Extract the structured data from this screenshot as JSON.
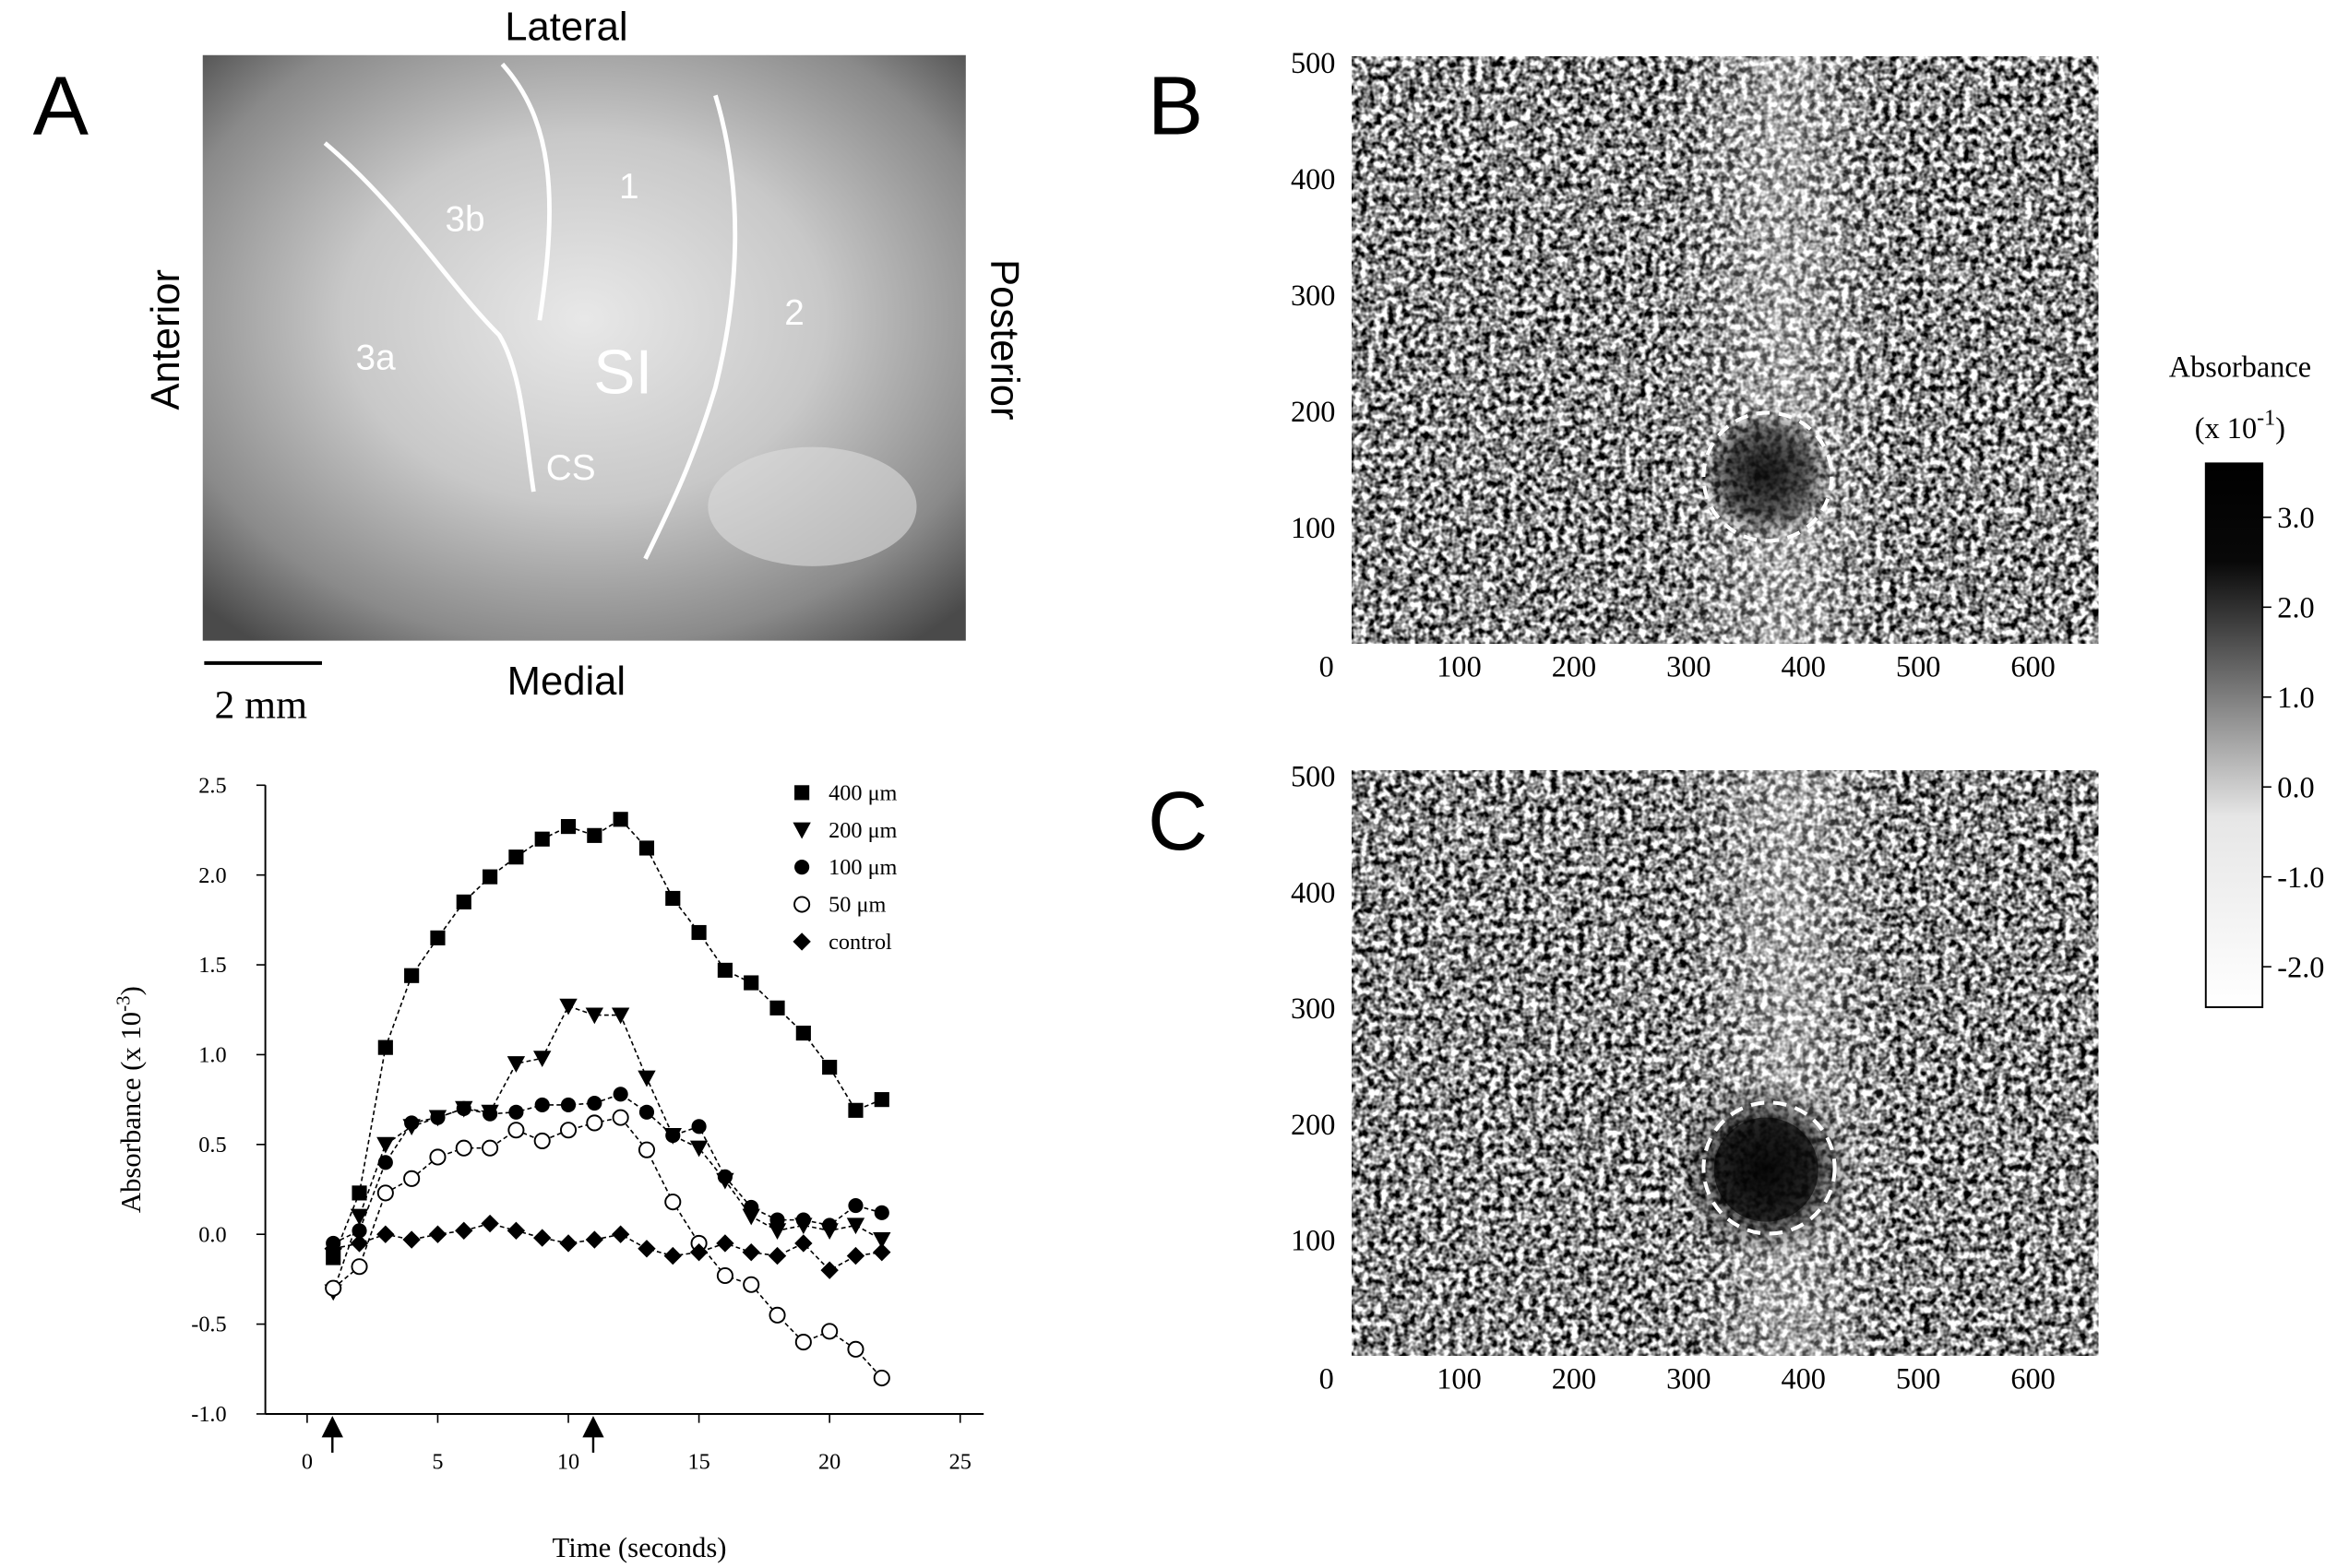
{
  "panel_labels": [
    "A",
    "B",
    "C"
  ],
  "photo": {
    "orientation": {
      "top": "Lateral",
      "bottom": "Medial",
      "left": "Anterior",
      "right": "Posterior"
    },
    "regions": [
      "3b",
      "1",
      "2",
      "3a",
      "SI",
      "CS"
    ],
    "scale_bar": "2 mm"
  },
  "chart_data": [
    {
      "type": "line",
      "x_label": "Time (seconds)",
      "y_label": [
        "Absorbance (x 10",
        "-3",
        ")"
      ],
      "x": [
        1,
        2,
        3,
        4,
        5,
        6,
        7,
        8,
        9,
        10,
        11,
        12,
        13,
        14,
        15,
        16,
        17,
        18,
        19,
        20,
        21,
        22
      ],
      "series": [
        {
          "name": "400 μm",
          "marker": "square",
          "color": "#000000",
          "values": [
            -0.13,
            0.23,
            1.04,
            1.44,
            1.65,
            1.85,
            1.99,
            2.1,
            2.2,
            2.27,
            2.22,
            2.31,
            2.15,
            1.87,
            1.68,
            1.47,
            1.4,
            1.26,
            1.12,
            0.93,
            0.69,
            0.75
          ]
        },
        {
          "name": "200 μm",
          "marker": "triangle-down",
          "color": "#000000",
          "values": [
            -0.32,
            0.1,
            0.5,
            0.6,
            0.65,
            0.7,
            0.68,
            0.95,
            0.98,
            1.27,
            1.22,
            1.22,
            0.87,
            0.55,
            0.48,
            0.3,
            0.1,
            0.02,
            0.05,
            0.02,
            0.05,
            -0.03
          ]
        },
        {
          "name": "100 μm",
          "marker": "circle",
          "color": "#000000",
          "values": [
            -0.05,
            0.02,
            0.4,
            0.62,
            0.65,
            0.7,
            0.67,
            0.68,
            0.72,
            0.72,
            0.73,
            0.78,
            0.68,
            0.55,
            0.6,
            0.32,
            0.15,
            0.08,
            0.08,
            0.05,
            0.16,
            0.12
          ]
        },
        {
          "name": "50 μm",
          "marker": "circle-open",
          "color": "#000000",
          "values": [
            -0.3,
            -0.18,
            0.23,
            0.31,
            0.43,
            0.48,
            0.48,
            0.58,
            0.52,
            0.58,
            0.62,
            0.65,
            0.47,
            0.18,
            -0.05,
            -0.23,
            -0.28,
            -0.45,
            -0.6,
            -0.54,
            -0.64,
            -0.8
          ]
        },
        {
          "name": "control",
          "marker": "diamond",
          "color": "#000000",
          "values": [
            -0.08,
            -0.05,
            0.0,
            -0.03,
            0.0,
            0.02,
            0.06,
            0.02,
            -0.02,
            -0.05,
            -0.03,
            0.0,
            -0.08,
            -0.12,
            -0.1,
            -0.05,
            -0.1,
            -0.12,
            -0.05,
            -0.2,
            -0.12,
            -0.1
          ]
        }
      ],
      "xlim": [
        -1.6,
        25.9
      ],
      "ylim": [
        -1.0,
        2.5
      ],
      "xticks": [
        0,
        5,
        10,
        15,
        20,
        25
      ],
      "yticks": [
        {
          "value": 2.5,
          "label": "2.5"
        },
        {
          "value": 2.0,
          "label": "2.0"
        },
        {
          "value": 1.5,
          "label": "1.5"
        },
        {
          "value": 1.0,
          "label": "1.0"
        },
        {
          "value": 0.5,
          "label": "0.5"
        },
        {
          "value": 0.0,
          "label": "0.0"
        },
        {
          "value": -0.5,
          "label": "-0.5"
        },
        {
          "value": -1.0,
          "label": "-1.0"
        }
      ],
      "legend": "upper right"
    },
    {
      "type": "image",
      "xlim": [
        0,
        657
      ],
      "ylim": [
        0,
        505
      ],
      "xticks": [
        0,
        100,
        200,
        300,
        400,
        500,
        600
      ],
      "yticks": [
        100,
        200,
        300,
        400,
        500
      ]
    },
    {
      "type": "image",
      "xlim": [
        0,
        657
      ],
      "ylim": [
        0,
        505
      ],
      "xticks": [
        0,
        100,
        200,
        300,
        400,
        500,
        600
      ],
      "yticks": [
        100,
        200,
        300,
        400,
        500
      ]
    },
    {
      "type": "colorbar",
      "title": [
        "Absorbance",
        "(x 10",
        "-1",
        ")"
      ],
      "ylim": [
        -2.45,
        3.6
      ],
      "yticks": [
        {
          "value": 3.0,
          "label": "3.0"
        },
        {
          "value": 2.0,
          "label": "2.0"
        },
        {
          "value": 1.0,
          "label": "1.0"
        },
        {
          "value": 0.0,
          "label": "0.0"
        },
        {
          "value": -1.0,
          "label": "-1.0"
        },
        {
          "value": -2.0,
          "label": "-2.0"
        }
      ]
    }
  ]
}
